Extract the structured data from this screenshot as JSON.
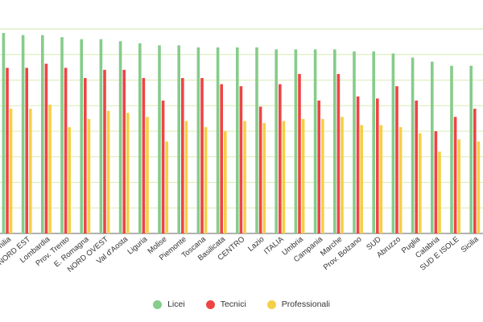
{
  "chart_data": {
    "type": "bar",
    "title": "",
    "xlabel": "",
    "ylabel": "",
    "ylim": [
      0,
      100
    ],
    "grid": true,
    "legend_position": "bottom",
    "categories": [
      "Emilia",
      "NORD EST",
      "Lombardia",
      "Prov. Trento",
      "E. Romagna",
      "NORD OVEST",
      "Val d'Aosta",
      "Liguria",
      "Molise",
      "Piemonte",
      "Toscana",
      "Basilicata",
      "CENTRO",
      "Lazio",
      "ITALIA",
      "Umbria",
      "Campania",
      "Marche",
      "Prov. Bolzano",
      "SUD",
      "Abruzzo",
      "Puglia",
      "Calabria",
      "SUD E ISOLE",
      "Sicilia"
    ],
    "series": [
      {
        "name": "Licei",
        "color": "#86cc8a",
        "values": [
          98,
          97,
          97,
          96,
          95,
          95,
          94,
          93,
          92,
          92,
          91,
          91,
          91,
          91,
          90,
          90,
          90,
          90,
          89,
          89,
          88,
          86,
          84,
          82,
          82
        ]
      },
      {
        "name": "Tecnici",
        "color": "#ef4444",
        "values": [
          81,
          81,
          83,
          81,
          76,
          80,
          80,
          76,
          65,
          76,
          76,
          73,
          72,
          62,
          73,
          78,
          65,
          78,
          67,
          66,
          72,
          65,
          50,
          57,
          61
        ]
      },
      {
        "name": "Professionali",
        "color": "#f5cf47",
        "values": [
          61,
          61,
          63,
          52,
          56,
          60,
          59,
          57,
          45,
          55,
          52,
          50,
          55,
          54,
          55,
          56,
          56,
          57,
          53,
          53,
          52,
          49,
          40,
          46,
          45
        ]
      }
    ]
  }
}
